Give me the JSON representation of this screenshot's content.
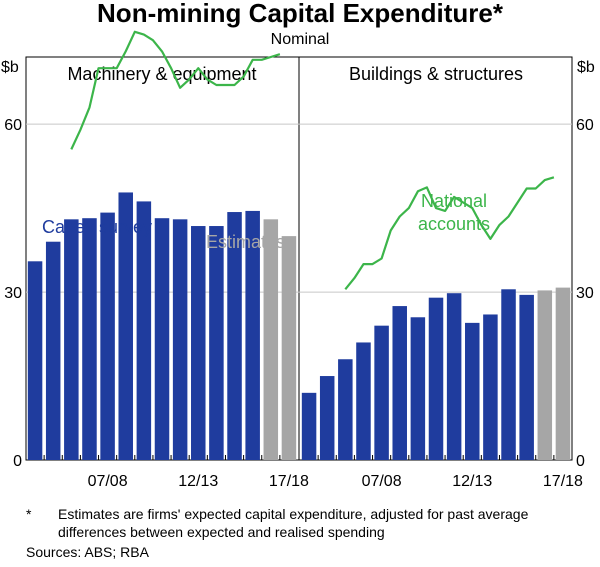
{
  "title": "Non-mining Capital Expenditure*",
  "subtitle": "Nominal",
  "y_unit_label": "$b",
  "footnote_marker": "*",
  "footnote_text": "Estimates are firms' expected capital expenditure, adjusted for past average differences between expected and realised spending",
  "sources": "Sources:   ABS; RBA",
  "colors": {
    "capex": "#1f3c9e",
    "estimates": "#a6a6a6",
    "national": "#3cb54a",
    "grid": "#c8c8c8"
  },
  "chart_data": [
    {
      "type": "bar",
      "title": "Machinery & equipment",
      "ylim": [
        0,
        72
      ],
      "yticks": [
        0,
        30,
        60
      ],
      "xtick_labels": [
        "07/08",
        "12/13",
        "17/18"
      ],
      "categories": [
        "03/04",
        "04/05",
        "05/06",
        "06/07",
        "07/08",
        "08/09",
        "09/10",
        "10/11",
        "11/12",
        "12/13",
        "13/14",
        "14/15",
        "15/16",
        "16/17",
        "17/18"
      ],
      "series": [
        {
          "name": "Capex survey",
          "kind": "bar",
          "values": [
            35.5,
            39,
            43,
            43.2,
            44.2,
            47.8,
            46.2,
            43.2,
            43,
            41.8,
            41.8,
            44.3,
            44.5,
            null,
            null
          ]
        },
        {
          "name": "Estimates",
          "kind": "bar",
          "values": [
            null,
            null,
            null,
            null,
            null,
            null,
            null,
            null,
            null,
            null,
            null,
            null,
            null,
            43,
            40
          ]
        },
        {
          "kind": "line",
          "x": [
            2.5,
            3,
            3.5,
            4,
            4.5,
            5,
            5.5,
            6,
            6.5,
            7,
            7.5,
            8,
            8.5,
            9,
            9.5,
            10,
            10.5,
            11,
            11.5,
            12,
            12.5,
            13,
            13.5,
            14
          ],
          "values": [
            55.5,
            59,
            63,
            70,
            70,
            70,
            73,
            76.5,
            76,
            75,
            73,
            70,
            66.5,
            68,
            70,
            68,
            67,
            67,
            67,
            68.5,
            71.5,
            71.5,
            72,
            72.5
          ]
        }
      ]
    },
    {
      "type": "bar",
      "title": "Buildings & structures",
      "ylim": [
        0,
        72
      ],
      "yticks": [
        0,
        30,
        60
      ],
      "xtick_labels": [
        "07/08",
        "12/13",
        "17/18"
      ],
      "categories": [
        "03/04",
        "04/05",
        "05/06",
        "06/07",
        "07/08",
        "08/09",
        "09/10",
        "10/11",
        "11/12",
        "12/13",
        "13/14",
        "14/15",
        "15/16",
        "16/17",
        "17/18"
      ],
      "series": [
        {
          "name": "Capex survey",
          "kind": "bar",
          "values": [
            12,
            15,
            18,
            21,
            24,
            27.5,
            25.5,
            29,
            29.8,
            24.5,
            26,
            30.5,
            29.5,
            null,
            null
          ]
        },
        {
          "name": "Estimates",
          "kind": "bar",
          "values": [
            null,
            null,
            null,
            null,
            null,
            null,
            null,
            null,
            null,
            null,
            null,
            null,
            null,
            30.3,
            30.8
          ]
        },
        {
          "name": "National accounts",
          "kind": "line",
          "x": [
            2.5,
            3,
            3.5,
            4,
            4.5,
            5,
            5.5,
            6,
            6.5,
            7,
            7.5,
            8,
            8.5,
            9,
            9.5,
            10,
            10.5,
            11,
            11.5,
            12,
            12.5,
            13,
            13.5,
            14
          ],
          "values": [
            30.5,
            32.5,
            35,
            35,
            36,
            41,
            43.5,
            45,
            48,
            48.7,
            45,
            44.5,
            47,
            46,
            45,
            42,
            39.5,
            42,
            43.5,
            46,
            48.5,
            48.5,
            50,
            50.5
          ]
        }
      ]
    }
  ]
}
